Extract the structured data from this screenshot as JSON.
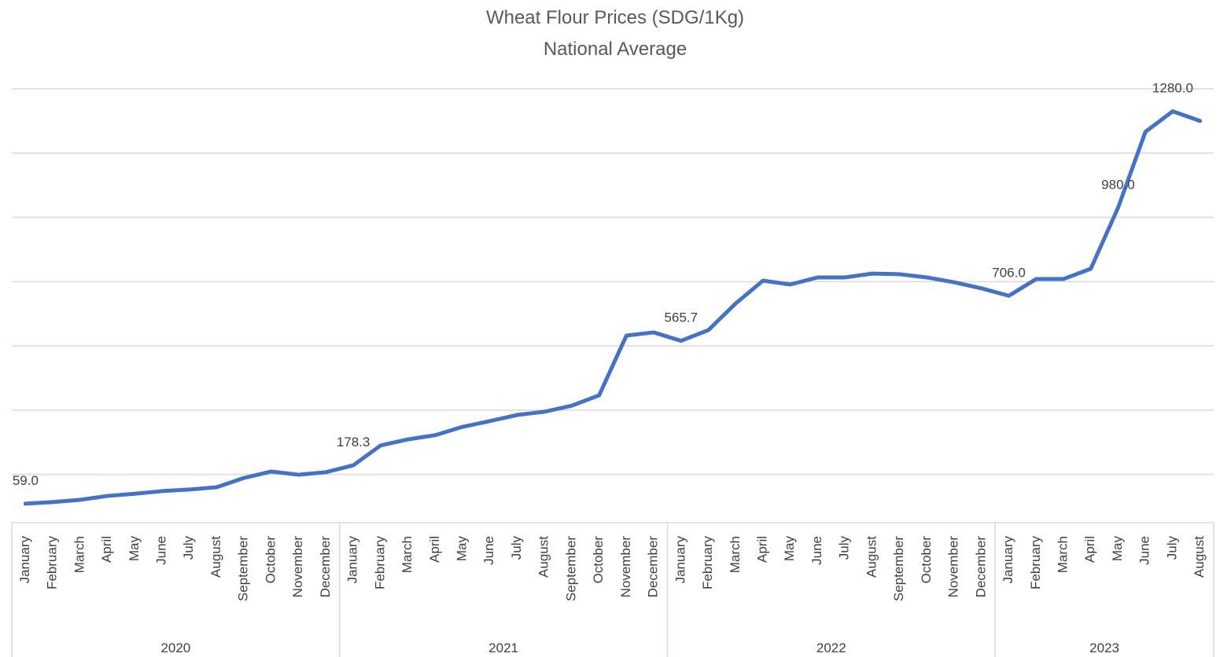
{
  "chart_data": {
    "type": "line",
    "title": "Wheat Flour Prices (SDG/1Kg)",
    "subtitle": "National Average",
    "categories": [
      "January",
      "February",
      "March",
      "April",
      "May",
      "June",
      "July",
      "August",
      "September",
      "October",
      "November",
      "December",
      "January",
      "February",
      "March",
      "April",
      "May",
      "June",
      "July",
      "August",
      "September",
      "October",
      "November",
      "December",
      "January",
      "February",
      "March",
      "April",
      "May",
      "June",
      "July",
      "August",
      "September",
      "October",
      "November",
      "December",
      "January",
      "February",
      "March",
      "April",
      "May",
      "June",
      "July",
      "August"
    ],
    "x_groups": [
      {
        "label": "2020",
        "count": 12
      },
      {
        "label": "2021",
        "count": 12
      },
      {
        "label": "2022",
        "count": 12
      },
      {
        "label": "2023",
        "count": 8
      }
    ],
    "series": [
      {
        "name": "National Average",
        "color": "#4472c4",
        "values": [
          59,
          64,
          71,
          83,
          90,
          98,
          103,
          110,
          139,
          159,
          149,
          157,
          178.3,
          240,
          259,
          272,
          298,
          316,
          335,
          345,
          364,
          396,
          582,
          592,
          565.7,
          599,
          682,
          753,
          741,
          763,
          763,
          775,
          773,
          763,
          748,
          729,
          706,
          758,
          758,
          790,
          980,
          1216,
          1280,
          1250
        ],
        "value_labels": [
          "59.0",
          null,
          null,
          null,
          null,
          null,
          null,
          null,
          null,
          null,
          null,
          null,
          "178.3",
          null,
          null,
          null,
          null,
          null,
          null,
          null,
          null,
          null,
          null,
          null,
          "565.7",
          null,
          null,
          null,
          null,
          null,
          null,
          null,
          null,
          null,
          null,
          null,
          "706.0",
          null,
          null,
          null,
          "980.0",
          null,
          "1280.0",
          null
        ]
      }
    ],
    "ylim": [
      0,
      1350
    ],
    "yticks": [
      150,
      350,
      550,
      750,
      950,
      1150,
      1350
    ],
    "grid": true
  }
}
